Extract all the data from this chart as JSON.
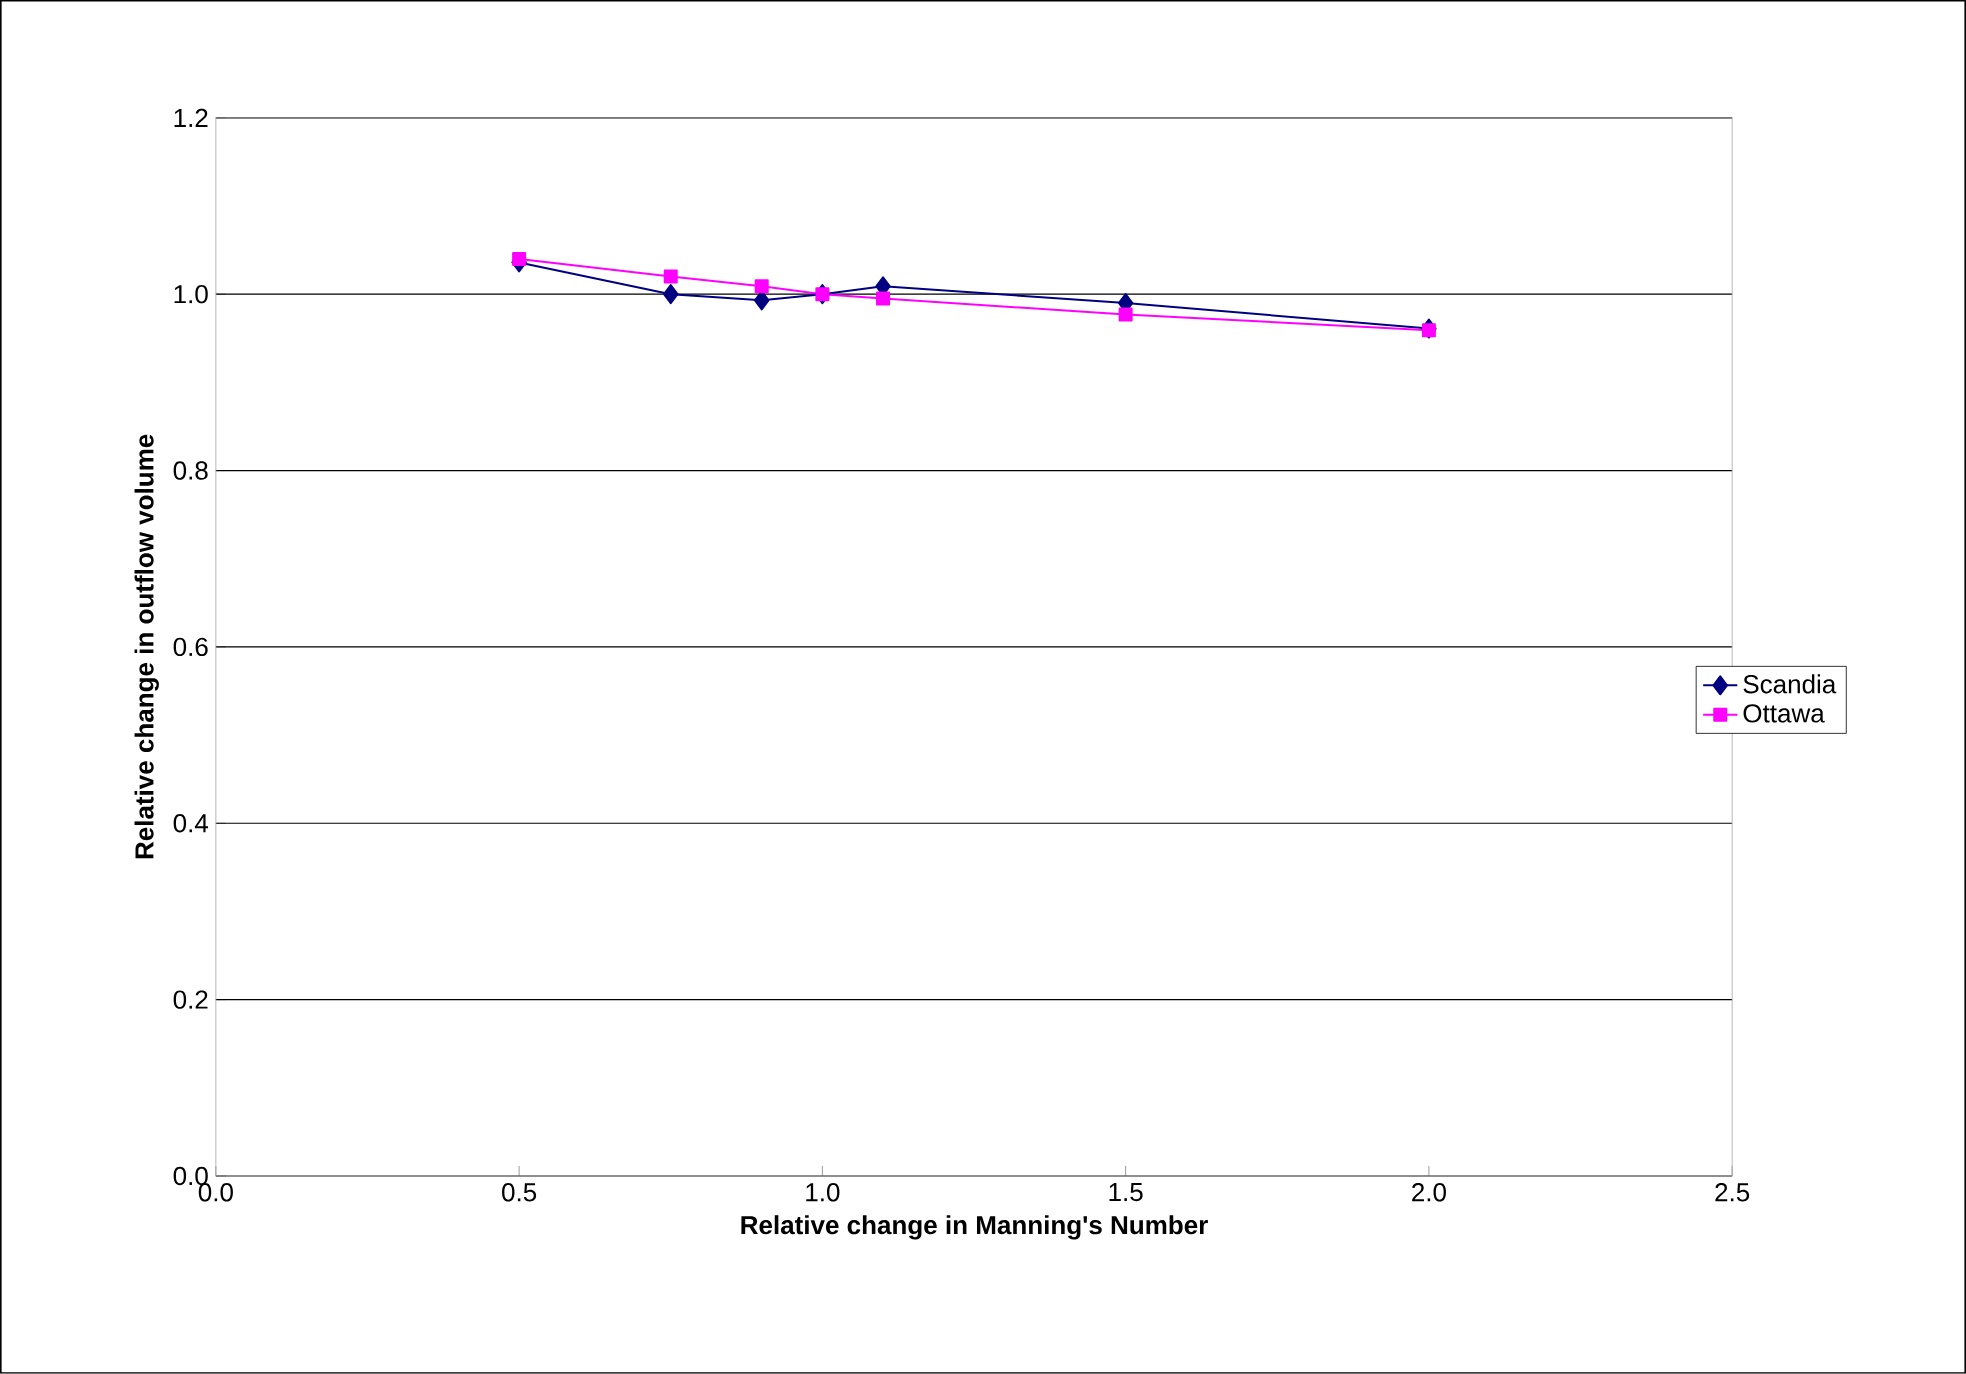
{
  "chart_data": {
    "type": "line",
    "xlabel": "Relative change in Manning's Number",
    "ylabel": "Relative change in outflow volume",
    "xlim": [
      0,
      2.5
    ],
    "ylim": [
      0,
      1.2
    ],
    "xticks": [
      {
        "value": 0,
        "label": "0.0"
      },
      {
        "value": 0.5,
        "label": "0.5"
      },
      {
        "value": 1,
        "label": "1.0"
      },
      {
        "value": 1.5,
        "label": "1.5"
      },
      {
        "value": 2,
        "label": "2.0"
      },
      {
        "value": 2.5,
        "label": "2.5"
      }
    ],
    "yticks": [
      {
        "value": 0,
        "label": "0.0"
      },
      {
        "value": 0.2,
        "label": "0.2"
      },
      {
        "value": 0.4,
        "label": "0.4"
      },
      {
        "value": 0.6,
        "label": "0.6"
      },
      {
        "value": 0.8,
        "label": "0.8"
      },
      {
        "value": 1,
        "label": "1.0"
      },
      {
        "value": 1.2,
        "label": "1.2"
      }
    ],
    "grid": "y",
    "legend": "right",
    "series": [
      {
        "name": "Scandia",
        "color": "#000080",
        "marker": "diamond",
        "x": [
          0.5,
          0.75,
          0.9,
          1.0,
          1.1,
          1.5,
          2.0
        ],
        "values": [
          1.036,
          1.0,
          0.993,
          1.0,
          1.009,
          0.99,
          0.961
        ]
      },
      {
        "name": "Ottawa",
        "color": "#ff00ff",
        "marker": "square",
        "x": [
          0.5,
          0.75,
          0.9,
          1.0,
          1.1,
          1.5,
          2.0
        ],
        "values": [
          1.04,
          1.02,
          1.009,
          1.0,
          0.995,
          0.977,
          0.959
        ]
      }
    ]
  }
}
